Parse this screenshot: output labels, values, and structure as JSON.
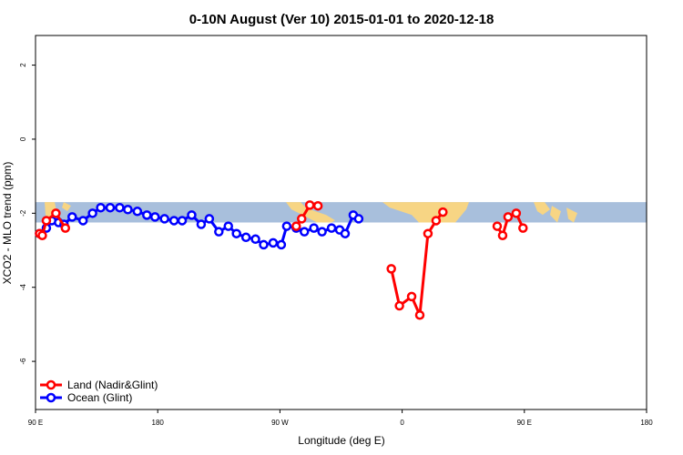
{
  "chart_data": {
    "type": "line",
    "title": "0-10N August (Ver 10)   2015-01-01 to 2020-12-18",
    "xlabel": "Longitude (deg E)",
    "ylabel": "XCO2 - MLO trend (ppm)",
    "xlim": [
      90,
      450
    ],
    "ylim": [
      -7.3,
      2.8
    ],
    "x_ticks": [
      90,
      180,
      270,
      360,
      450,
      540
    ],
    "x_tick_labels": [
      "90 E",
      "180",
      "90 W",
      "0",
      "90 E",
      "180"
    ],
    "y_ticks": [
      2,
      0,
      -2,
      -4,
      -6
    ],
    "y_tick_labels": [
      "2",
      "0",
      "-2",
      "-4",
      "-6"
    ],
    "legend_position": "bottom-left",
    "band": {
      "y_min": -2.25,
      "y_max": -1.7,
      "color": "#a8bfdc",
      "land_color": "#f7d584"
    },
    "series": [
      {
        "name": "Land (Nadir&Glint)",
        "color": "#ff0000",
        "segments": [
          {
            "x": [
              93,
              95,
              98,
              105,
              112
            ],
            "y": [
              -2.55,
              -2.6,
              -2.2,
              -2.0,
              -2.4
            ]
          },
          {
            "x": [
              282,
              286,
              292,
              298
            ],
            "y": [
              -2.35,
              -2.15,
              -1.78,
              -1.8
            ]
          },
          {
            "x": [
              352,
              358,
              367,
              373,
              379,
              385,
              390
            ],
            "y": [
              -3.5,
              -4.5,
              -4.25,
              -4.75,
              -2.55,
              -2.2,
              -1.97
            ]
          },
          {
            "x": [
              430,
              434,
              438,
              444,
              449
            ],
            "y": [
              -2.35,
              -2.6,
              -2.1,
              -2.0,
              -2.4
            ]
          }
        ]
      },
      {
        "name": "Ocean (Glint)",
        "color": "#0000ff",
        "segments": [
          {
            "x": [
              93,
              98,
              102,
              107,
              111,
              117,
              125,
              132,
              138,
              145,
              152,
              158,
              165,
              172,
              178,
              185,
              192,
              198,
              205,
              212,
              218,
              225,
              232,
              238,
              245,
              252,
              258,
              265,
              271,
              275,
              282,
              288,
              295,
              301,
              308,
              314,
              318,
              324,
              328
            ],
            "y": [
              -2.55,
              -2.4,
              -2.2,
              -2.25,
              -2.3,
              -2.1,
              -2.2,
              -2.0,
              -1.85,
              -1.85,
              -1.85,
              -1.9,
              -1.95,
              -2.05,
              -2.1,
              -2.15,
              -2.2,
              -2.2,
              -2.05,
              -2.3,
              -2.15,
              -2.5,
              -2.35,
              -2.55,
              -2.65,
              -2.7,
              -2.85,
              -2.8,
              -2.85,
              -2.35,
              -2.4,
              -2.5,
              -2.4,
              -2.5,
              -2.4,
              -2.45,
              -2.55,
              -2.05,
              -2.15
            ]
          }
        ]
      }
    ]
  },
  "legend": {
    "items": [
      {
        "label": "Land (Nadir&Glint)",
        "color": "#ff0000"
      },
      {
        "label": "Ocean (Glint)",
        "color": "#0000ff"
      }
    ]
  }
}
